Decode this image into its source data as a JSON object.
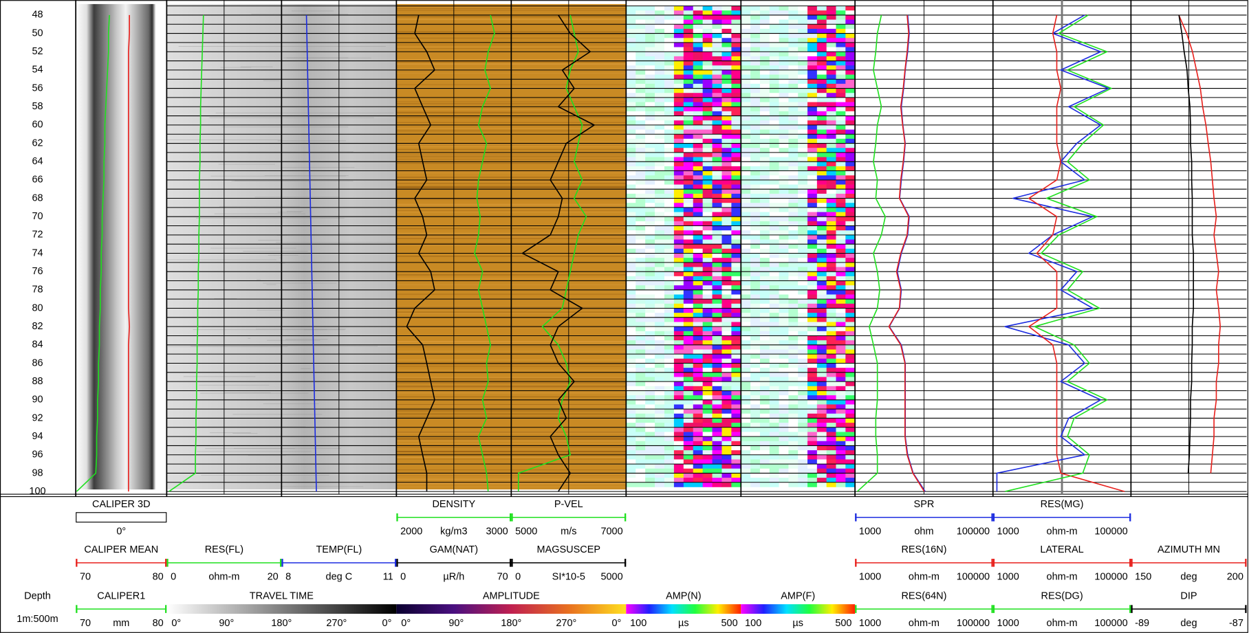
{
  "depth_axis": {
    "label": "Depth",
    "scale": "1m:500m",
    "range": [
      46.8,
      100.3
    ],
    "ticks": [
      48,
      50,
      52,
      54,
      56,
      58,
      60,
      62,
      64,
      66,
      68,
      70,
      72,
      74,
      76,
      78,
      80,
      82,
      84,
      86,
      88,
      90,
      92,
      94,
      96,
      98,
      100
    ],
    "grid_step": 1
  },
  "depths": [
    48,
    50,
    52,
    54,
    56,
    58,
    60,
    62,
    64,
    66,
    68,
    70,
    72,
    74,
    76,
    78,
    80,
    82,
    84,
    86,
    88,
    90,
    92,
    94,
    96,
    98,
    100
  ],
  "header_rows": [
    [
      {
        "name": "CALIPER 3D",
        "tracks": [
          1,
          1
        ],
        "style": "box",
        "label": "0°"
      },
      {
        "name": "DENSITY",
        "tracks": [
          4,
          4
        ],
        "color": "#1fe01f",
        "min": 2000,
        "unit": "kg/m3",
        "max": 3000,
        "values": [
          2819,
          2854,
          2799,
          2771,
          2819,
          2750,
          2715,
          2785,
          2750,
          2715,
          2701,
          2729,
          2715,
          2681,
          2750,
          2715,
          2750,
          2785,
          2819,
          2785,
          2799,
          2750,
          2785,
          2715,
          2750,
          2785,
          2799
        ]
      },
      {
        "name": "P-VEL",
        "tracks": [
          5,
          5
        ],
        "color": "#1fe01f",
        "min": 5000,
        "unit": "m/s",
        "max": 7000,
        "values": [
          6028,
          6097,
          6167,
          6028,
          5958,
          6097,
          6236,
          6167,
          6097,
          6236,
          6097,
          6306,
          6167,
          6097,
          6028,
          5958,
          5889,
          5542,
          5819,
          5958,
          6028,
          5889,
          5819,
          5958,
          6028,
          5125,
          5125
        ]
      },
      {
        "name": "SPR",
        "tracks": [
          8,
          8
        ],
        "color": "#1c2ce0",
        "min": 1000,
        "unit": "ohm",
        "max": 100000,
        "log": true,
        "values": [
          5800,
          6110,
          5800,
          5350,
          5070,
          4690,
          4940,
          5350,
          5070,
          4690,
          4440,
          6110,
          5800,
          4690,
          4100,
          4690,
          4440,
          3140,
          4690,
          5350,
          5350,
          5350,
          5350,
          5350,
          5800,
          6980,
          10400
        ]
      },
      {
        "name": "RES(MG)",
        "tracks": [
          9,
          9
        ],
        "color": "#1c2ce0",
        "min": 1000,
        "unit": "ohm-m",
        "max": 100000,
        "log": true,
        "values": [
          21300,
          7360,
          36400,
          9610,
          47500,
          12500,
          36400,
          16400,
          9610,
          21300,
          1950,
          27900,
          7360,
          3310,
          16400,
          9610,
          27900,
          1490,
          12500,
          21300,
          9610,
          36400,
          12500,
          9610,
          21300,
          1140,
          1140
        ]
      }
    ],
    [
      {
        "name": "CALIPER MEAN",
        "tracks": [
          1,
          1
        ],
        "color": "#e8201c",
        "min": 70,
        "max": 80,
        "values": [
          75.9,
          75.9,
          75.8,
          75.8,
          75.8,
          75.8,
          75.8,
          75.8,
          75.8,
          75.8,
          75.8,
          75.8,
          75.8,
          75.8,
          75.8,
          75.8,
          75.8,
          75.9,
          75.8,
          75.8,
          75.8,
          75.8,
          75.8,
          75.8,
          75.8,
          75.8,
          75.8
        ]
      },
      {
        "name": "RES(FL)",
        "tracks": [
          2,
          2
        ],
        "color": "#1fe01f",
        "min": 0,
        "unit": "ohm-m",
        "max": 20,
        "values": [
          6.4,
          6.3,
          6.2,
          6.1,
          6.0,
          5.9,
          5.9,
          5.8,
          5.8,
          5.7,
          5.7,
          5.7,
          5.6,
          5.6,
          5.5,
          5.5,
          5.4,
          5.4,
          5.3,
          5.3,
          5.2,
          5.2,
          5.1,
          5.1,
          5.0,
          5.0,
          0.4
        ]
      },
      {
        "name": "TEMP(FL)",
        "tracks": [
          3,
          3
        ],
        "color": "#1c2ce0",
        "min": 8,
        "unit": "deg C",
        "max": 11,
        "values": [
          8.65,
          8.66,
          8.67,
          8.68,
          8.69,
          8.7,
          8.71,
          8.72,
          8.73,
          8.74,
          8.75,
          8.76,
          8.77,
          8.78,
          8.79,
          8.8,
          8.81,
          8.82,
          8.83,
          8.84,
          8.85,
          8.86,
          8.87,
          8.88,
          8.89,
          8.9,
          8.91
        ]
      },
      {
        "name": "GAM(NAT)",
        "tracks": [
          4,
          4
        ],
        "color": "#000000",
        "min": 0,
        "unit": "µR/h",
        "max": 70,
        "values": [
          13.6,
          11.2,
          18.5,
          23.3,
          11.2,
          16.0,
          20.9,
          13.6,
          16.0,
          18.5,
          11.2,
          16.0,
          18.5,
          13.6,
          20.9,
          23.3,
          11.2,
          6.3,
          16.0,
          18.5,
          20.9,
          23.3,
          18.5,
          13.6,
          16.0,
          18.5,
          18.5
        ]
      },
      {
        "name": "MAGSUSCEP",
        "tracks": [
          5,
          5
        ],
        "color": "#000000",
        "min": 0,
        "unit": "SI*10-5",
        "max": 5000,
        "values": [
          2049,
          2569,
          3438,
          2222,
          2743,
          2049,
          3611,
          2396,
          2049,
          1701,
          2222,
          2049,
          1701,
          486,
          2049,
          1701,
          3090,
          2049,
          1701,
          2049,
          2743,
          2049,
          2396,
          1701,
          2049,
          2569,
          2049
        ]
      },
      {
        "name": "RES(16N)",
        "tracks": [
          8,
          8
        ],
        "color": "#e8201c",
        "min": 1000,
        "unit": "ohm-m",
        "max": 100000,
        "log": true,
        "values": [
          5700,
          6000,
          5700,
          5300,
          5000,
          4600,
          4900,
          5300,
          5000,
          4600,
          4400,
          6000,
          5700,
          4600,
          4000,
          4600,
          4400,
          3100,
          4600,
          5300,
          5300,
          5300,
          5300,
          5300,
          5700,
          6900,
          10100
        ]
      },
      {
        "name": "LATERAL",
        "tracks": [
          9,
          9
        ],
        "color": "#e8201c",
        "min": 1000,
        "unit": "ohm-m",
        "max": 100000,
        "log": true,
        "values": [
          8410,
          7360,
          8410,
          8410,
          9610,
          8410,
          8410,
          8410,
          9610,
          8410,
          3310,
          8410,
          7360,
          4320,
          8410,
          8410,
          8410,
          3310,
          7360,
          8410,
          8410,
          8410,
          8410,
          8410,
          8410,
          9610,
          80900
        ]
      },
      {
        "name": "AZIMUTH MN",
        "tracks": [
          10,
          10
        ],
        "color": "#e8201c",
        "min": 150,
        "unit": "deg",
        "max": 200,
        "values": [
          170.7,
          174.1,
          176.6,
          178.3,
          180.0,
          181.0,
          182.4,
          183.4,
          184.5,
          185.2,
          185.9,
          186.9,
          185.9,
          186.9,
          187.9,
          186.9,
          187.9,
          188.6,
          187.9,
          187.9,
          186.9,
          186.9,
          185.9,
          185.9,
          185.2,
          184.5,
          null
        ]
      }
    ],
    [
      {
        "name": "CALIPER1",
        "tracks": [
          1,
          1
        ],
        "color": "#1fe01f",
        "min": 70,
        "unit": "mm",
        "max": 80,
        "values": [
          73.7,
          73.6,
          73.6,
          73.5,
          73.4,
          73.3,
          73.2,
          73.2,
          73.1,
          73.1,
          73.0,
          72.9,
          72.9,
          72.8,
          72.8,
          72.7,
          72.7,
          72.6,
          72.6,
          72.5,
          72.5,
          72.4,
          72.4,
          72.3,
          72.3,
          72.2,
          70.1
        ]
      },
      {
        "name": "TRAVEL TIME",
        "tracks": [
          2,
          3
        ],
        "colormap": "gray",
        "labels": [
          "0°",
          "90°",
          "180°",
          "270°",
          "0°"
        ]
      },
      {
        "name": "AMPLITUDE",
        "tracks": [
          4,
          5
        ],
        "colormap": "amplitude",
        "labels": [
          "0°",
          "90°",
          "180°",
          "270°",
          "0°"
        ]
      },
      {
        "name": "AMP(N)",
        "tracks": [
          6,
          6
        ],
        "colormap": "rainbow",
        "min": 100,
        "unit": "µs",
        "max": 500
      },
      {
        "name": "AMP(F)",
        "tracks": [
          7,
          7
        ],
        "colormap": "rainbow",
        "min": 100,
        "unit": "µs",
        "max": 500
      },
      {
        "name": "RES(64N)",
        "tracks": [
          8,
          8
        ],
        "color": "#1fe01f",
        "min": 1000,
        "unit": "ohm-m",
        "max": 100000,
        "log": true,
        "values": [
          2410,
          2110,
          2000,
          1850,
          2110,
          2410,
          2110,
          2000,
          1850,
          2110,
          2000,
          2750,
          2410,
          1850,
          2110,
          2280,
          2110,
          1610,
          1850,
          2110,
          2110,
          2110,
          2000,
          2000,
          2110,
          2110,
          1080
        ]
      },
      {
        "name": "RES(DG)",
        "tracks": [
          9,
          9
        ],
        "color": "#1fe01f",
        "min": 1000,
        "unit": "ohm-m",
        "max": 100000,
        "log": true,
        "values": [
          24000,
          9000,
          45000,
          12000,
          52000,
          15000,
          40000,
          20000,
          12000,
          25000,
          6000,
          32000,
          9000,
          5000,
          20000,
          12000,
          35000,
          4000,
          15000,
          25000,
          12000,
          45000,
          15000,
          12000,
          25000,
          20000,
          1500
        ]
      },
      {
        "name": "DIP",
        "tracks": [
          10,
          10
        ],
        "color": "#000000",
        "min": -89,
        "unit": "deg",
        "max": -87,
        "values": [
          -88.17,
          -88.12,
          -88.08,
          -88.03,
          -88.01,
          -87.98,
          -87.97,
          -87.97,
          -87.95,
          -87.95,
          -87.94,
          -87.94,
          -87.94,
          -87.92,
          -87.92,
          -87.92,
          -87.92,
          -87.94,
          -87.94,
          -87.95,
          -87.95,
          -87.97,
          -87.97,
          -87.98,
          -87.99,
          -88.01,
          null
        ]
      }
    ]
  ]
}
